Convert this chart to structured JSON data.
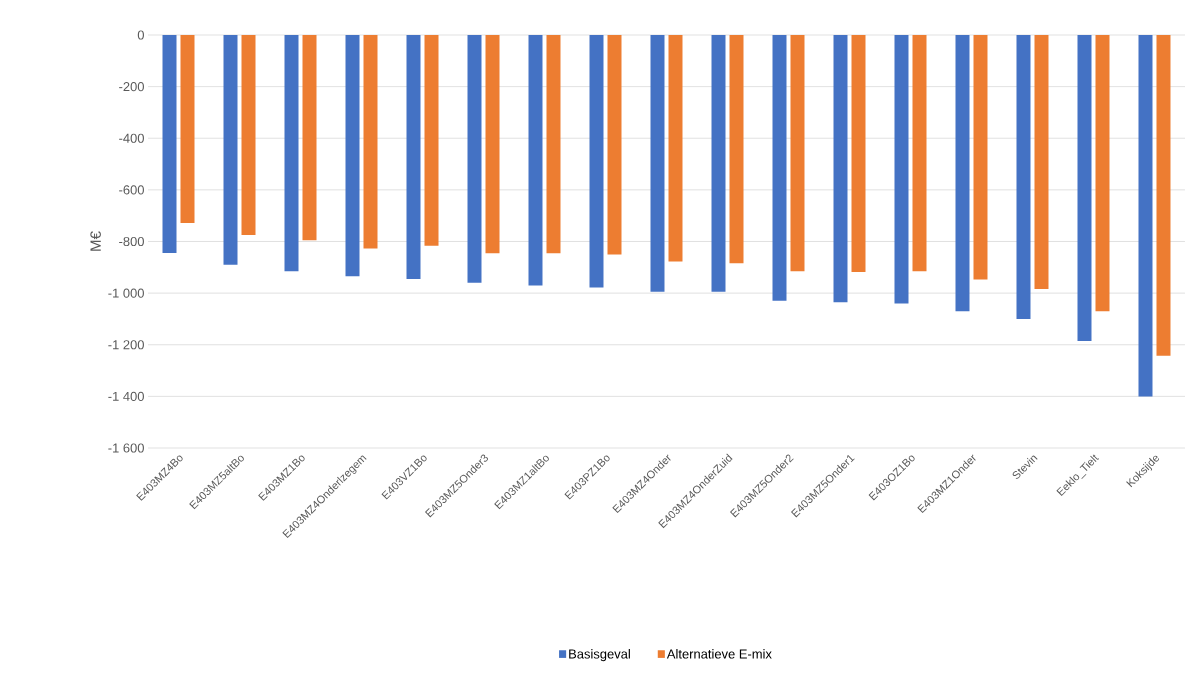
{
  "chart_data": {
    "type": "bar",
    "ylabel": "M€",
    "categories": [
      "E403MZ4Bo",
      "E403MZ5altBo",
      "E403MZ1Bo",
      "E403MZ4Onderlzegem",
      "E403VZ1Bo",
      "E403MZ5Onder3",
      "E403MZ1altBo",
      "E403PZ1Bo",
      "E403MZ4Onder",
      "E403MZ4OnderZuid",
      "E403MZ5Onder2",
      "E403MZ5Onder1",
      "E403OZ1Bo",
      "E403MZ1Onder",
      "Stevin",
      "Eeklo_Tielt",
      "Koksijde"
    ],
    "series": [
      {
        "name": "Basisgeval",
        "color": "#4472c4",
        "values": [
          -845,
          -890,
          -915,
          -935,
          -945,
          -960,
          -970,
          -978,
          -995,
          -995,
          -1030,
          -1035,
          -1040,
          -1070,
          -1100,
          -1185,
          -1400
        ]
      },
      {
        "name": "Alternatieve E-mix",
        "color": "#ed7d31",
        "values": [
          -728,
          -775,
          -795,
          -827,
          -816,
          -846,
          -846,
          -850,
          -877,
          -884,
          -915,
          -918,
          -915,
          -947,
          -984,
          -1070,
          -1243
        ]
      }
    ],
    "ylim": [
      -1600,
      0
    ],
    "yticks": [
      {
        "value": -1600,
        "label": "-1 600"
      },
      {
        "value": -1400,
        "label": "-1 400"
      },
      {
        "value": -1200,
        "label": "-1 200"
      },
      {
        "value": -1000,
        "label": "-1 000"
      },
      -800,
      -600,
      -400,
      -200,
      0
    ],
    "grid": "y",
    "legend": "bottom"
  }
}
